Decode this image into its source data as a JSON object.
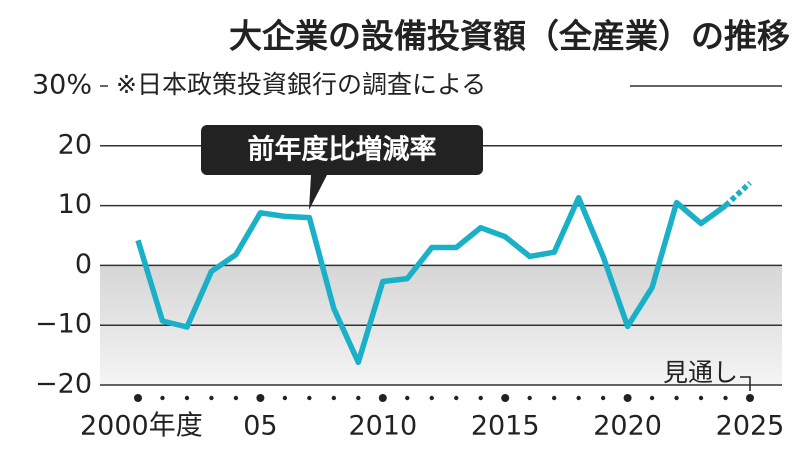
{
  "chart_data": {
    "type": "line",
    "title": "大企業の設備投資額（全産業）の推移",
    "subtitle": "※日本政策投資銀行の調査による",
    "annotation": "前年度比増減率",
    "projection_label": "見通し",
    "x": [
      2000,
      2001,
      2002,
      2003,
      2004,
      2005,
      2006,
      2007,
      2008,
      2009,
      2010,
      2011,
      2012,
      2013,
      2014,
      2015,
      2016,
      2017,
      2018,
      2019,
      2020,
      2021,
      2022,
      2023,
      2024,
      2025
    ],
    "values": [
      4.2,
      -9.3,
      -10.3,
      -1,
      1.8,
      8.8,
      8.2,
      8,
      -7.2,
      -16.2,
      -2.7,
      -2.2,
      3,
      3,
      6.3,
      4.8,
      1.5,
      2.2,
      11.3,
      1.5,
      -10.2,
      -3.7,
      10.5,
      7,
      10,
      13.8
    ],
    "dashed_from_index": 24,
    "color": "#1ab0c8",
    "xlim": [
      2000,
      2025
    ],
    "xticks": [
      {
        "value": 2000,
        "label": "2000年度"
      },
      {
        "value": 2005,
        "label": "05"
      },
      2010,
      2015,
      2020,
      2025
    ],
    "ylim": [
      -20,
      30
    ],
    "yticks": [
      {
        "value": -20,
        "label": "−20"
      },
      {
        "value": -10,
        "label": "−10"
      },
      0,
      10,
      20,
      {
        "value": 30,
        "label": "30%"
      }
    ],
    "grid": true,
    "negative_shading": true
  }
}
